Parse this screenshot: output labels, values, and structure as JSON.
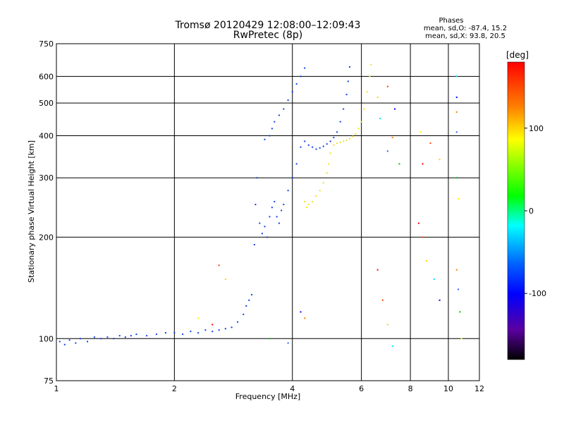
{
  "header": {
    "title": "Tromsø 20120429 12:08:00–12:09:43",
    "subtitle": "RwPretec (8p)"
  },
  "phase_info": {
    "heading": "Phases",
    "line_o": "mean, sd,O: -87.4, 15.2",
    "line_x": "mean, sd,X: 93.8, 20.5"
  },
  "chart_data": {
    "type": "scatter",
    "title": "Tromsø 20120429 12:08:00–12:09:43",
    "subtitle": "RwPretec (8p)",
    "xlabel": "Frequency [MHz]",
    "ylabel": "Stationary phase Virtual Height [km]",
    "x_scale": "log",
    "y_scale": "log",
    "xlim": [
      1,
      12
    ],
    "ylim": [
      75,
      750
    ],
    "x_ticks": [
      1,
      2,
      4,
      6,
      8,
      10,
      12
    ],
    "y_ticks": [
      75,
      100,
      200,
      300,
      400,
      500,
      600,
      750
    ],
    "grid": true,
    "colorbar": {
      "label": "[deg]",
      "range": [
        -180,
        180
      ],
      "ticks": [
        100,
        0,
        -100
      ],
      "colors": [
        "#ff0000",
        "#ff8000",
        "#ffff00",
        "#00ff00",
        "#00ffff",
        "#0050ff",
        "#0000ff",
        "#5a00a0",
        "#000000"
      ]
    },
    "series": [
      {
        "phase_group": "O",
        "color": "#1040e8",
        "points": [
          [
            1.02,
            98
          ],
          [
            1.05,
            96
          ],
          [
            1.08,
            99
          ],
          [
            1.12,
            97
          ],
          [
            1.15,
            100
          ],
          [
            1.2,
            98
          ],
          [
            1.25,
            101
          ],
          [
            1.3,
            100
          ],
          [
            1.35,
            101
          ],
          [
            1.4,
            100
          ],
          [
            1.45,
            102
          ],
          [
            1.5,
            101
          ],
          [
            1.55,
            102
          ],
          [
            1.6,
            103
          ],
          [
            1.7,
            102
          ],
          [
            1.8,
            103
          ],
          [
            1.9,
            104
          ],
          [
            2.0,
            104
          ],
          [
            2.1,
            103
          ],
          [
            2.2,
            105
          ],
          [
            2.3,
            104
          ],
          [
            2.4,
            106
          ],
          [
            2.5,
            105
          ],
          [
            2.6,
            106
          ],
          [
            2.7,
            107
          ],
          [
            2.8,
            108
          ],
          [
            2.9,
            112
          ],
          [
            3.0,
            118
          ],
          [
            3.05,
            125
          ],
          [
            3.1,
            130
          ],
          [
            3.15,
            135
          ],
          [
            3.2,
            190
          ],
          [
            3.22,
            250
          ],
          [
            3.25,
            300
          ],
          [
            3.3,
            220
          ],
          [
            3.35,
            205
          ],
          [
            3.4,
            215
          ],
          [
            3.45,
            200
          ],
          [
            3.5,
            230
          ],
          [
            3.55,
            245
          ],
          [
            3.6,
            255
          ],
          [
            3.65,
            230
          ],
          [
            3.7,
            220
          ],
          [
            3.75,
            240
          ],
          [
            3.8,
            250
          ],
          [
            3.9,
            275
          ],
          [
            4.0,
            300
          ],
          [
            4.1,
            330
          ],
          [
            4.2,
            370
          ],
          [
            4.3,
            385
          ],
          [
            4.4,
            375
          ],
          [
            4.5,
            370
          ],
          [
            4.6,
            365
          ],
          [
            4.7,
            368
          ],
          [
            4.8,
            372
          ],
          [
            4.9,
            378
          ],
          [
            5.0,
            385
          ],
          [
            5.1,
            395
          ],
          [
            5.2,
            410
          ],
          [
            5.3,
            440
          ],
          [
            5.4,
            480
          ],
          [
            5.5,
            530
          ],
          [
            5.55,
            580
          ],
          [
            5.6,
            640
          ],
          [
            3.4,
            390
          ],
          [
            3.5,
            400
          ],
          [
            3.55,
            420
          ],
          [
            3.6,
            440
          ],
          [
            3.7,
            460
          ],
          [
            3.8,
            480
          ],
          [
            3.9,
            510
          ],
          [
            4.0,
            540
          ],
          [
            4.1,
            570
          ],
          [
            4.2,
            600
          ],
          [
            4.3,
            635
          ]
        ]
      },
      {
        "phase_group": "X",
        "color": "#f0e020",
        "points": [
          [
            4.3,
            255
          ],
          [
            4.35,
            245
          ],
          [
            4.4,
            250
          ],
          [
            4.5,
            255
          ],
          [
            4.6,
            265
          ],
          [
            4.7,
            275
          ],
          [
            4.8,
            290
          ],
          [
            4.9,
            310
          ],
          [
            4.95,
            330
          ],
          [
            5.0,
            355
          ],
          [
            5.1,
            375
          ],
          [
            5.2,
            380
          ],
          [
            5.3,
            382
          ],
          [
            5.4,
            385
          ],
          [
            5.5,
            388
          ],
          [
            5.6,
            392
          ],
          [
            5.7,
            398
          ],
          [
            5.8,
            405
          ],
          [
            5.9,
            420
          ],
          [
            6.0,
            440
          ],
          [
            6.1,
            480
          ],
          [
            6.2,
            540
          ],
          [
            6.3,
            600
          ],
          [
            6.35,
            650
          ]
        ]
      }
    ],
    "scattered_points": [
      [
        7.0,
        560
      ],
      [
        6.6,
        520
      ],
      [
        6.7,
        450
      ],
      [
        7.3,
        480
      ],
      [
        7.2,
        395
      ],
      [
        7.0,
        360
      ],
      [
        7.5,
        330
      ],
      [
        8.5,
        410
      ],
      [
        8.6,
        330
      ],
      [
        9.0,
        380
      ],
      [
        9.5,
        340
      ],
      [
        10.5,
        600
      ],
      [
        10.5,
        520
      ],
      [
        10.5,
        470
      ],
      [
        10.5,
        410
      ],
      [
        10.5,
        300
      ],
      [
        10.6,
        260
      ],
      [
        8.4,
        220
      ],
      [
        8.6,
        200
      ],
      [
        8.8,
        170
      ],
      [
        9.2,
        150
      ],
      [
        9.5,
        130
      ],
      [
        10.5,
        160
      ],
      [
        10.6,
        140
      ],
      [
        10.7,
        120
      ],
      [
        10.8,
        100
      ],
      [
        6.6,
        160
      ],
      [
        6.8,
        130
      ],
      [
        7.0,
        110
      ],
      [
        7.2,
        95
      ],
      [
        4.2,
        120
      ],
      [
        4.3,
        115
      ],
      [
        3.9,
        97
      ],
      [
        3.5,
        100
      ],
      [
        2.3,
        115
      ],
      [
        2.5,
        110
      ],
      [
        2.6,
        165
      ],
      [
        2.7,
        150
      ]
    ],
    "scattered_colors": [
      "#ff4000",
      "#ffd000",
      "#00e0ff",
      "#0000ff",
      "#ff8000",
      "#3060ff",
      "#00c000",
      "#ffff00",
      "#ff0000"
    ]
  }
}
